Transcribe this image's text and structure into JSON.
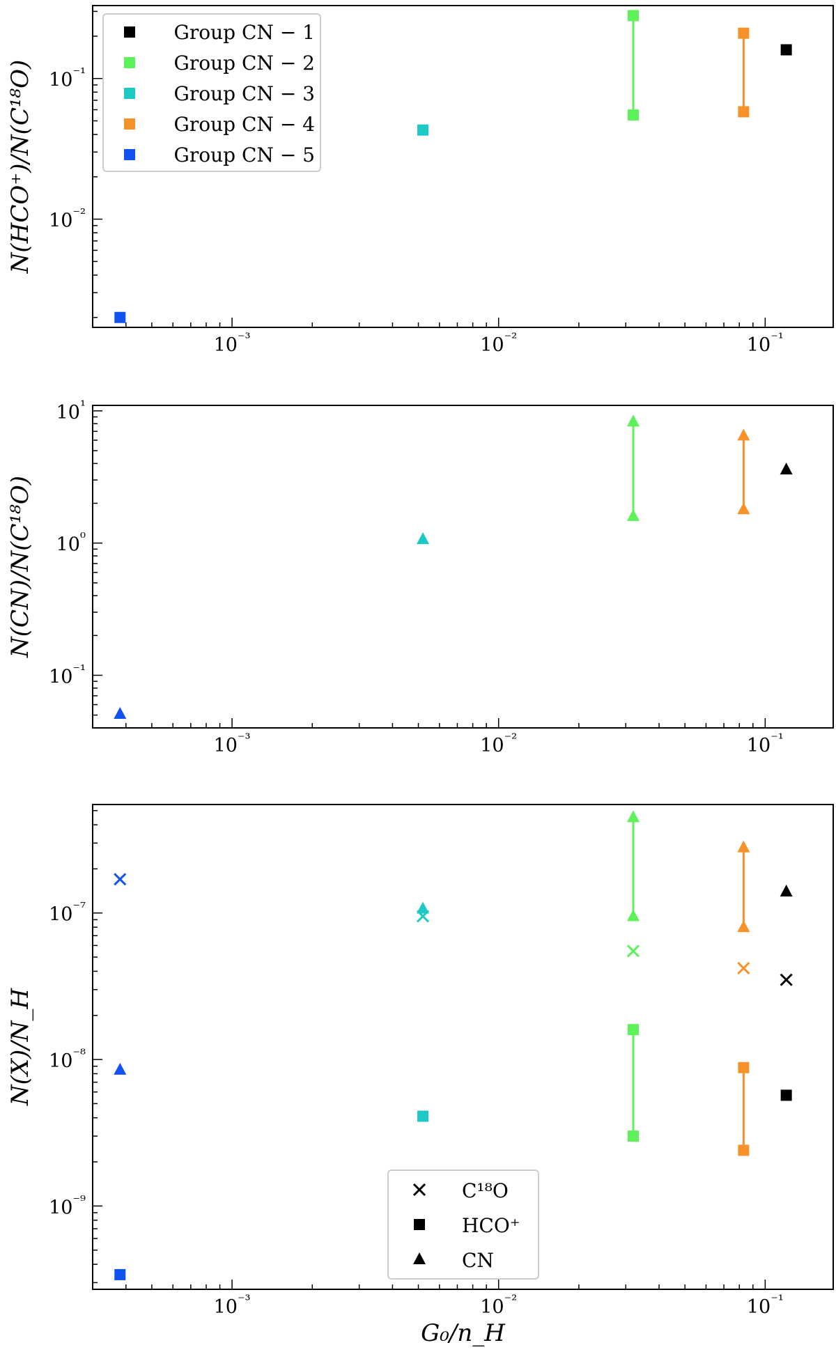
{
  "colors": {
    "group_cn_1": "#000000",
    "group_cn_2": "#5df25a",
    "group_cn_3": "#1ec8c4",
    "group_cn_4": "#f7922a",
    "group_cn_5": "#1152f0"
  },
  "chart_data": [
    {
      "type": "scatter",
      "panel": "top",
      "ylabel": "N(HCO⁺)/N(C¹⁸O)",
      "xlabel": "",
      "xscale": "log",
      "yscale": "log",
      "xlim": [
        0.0003,
        0.18
      ],
      "ylim": [
        0.0017,
        0.33
      ],
      "x_ticks": [
        "10⁻³",
        "10⁻²",
        "10⁻¹"
      ],
      "y_ticks": [
        "10⁻²",
        "10⁻¹"
      ],
      "legend": {
        "placement": "upper-left",
        "entries": [
          "Group CN − 1",
          "Group CN − 2",
          "Group CN − 3",
          "Group CN − 4",
          "Group CN − 5"
        ]
      },
      "series": [
        {
          "name": "Group CN − 1",
          "color_key": "group_cn_1",
          "marker": "square",
          "x": 0.12,
          "y": [
            0.16
          ]
        },
        {
          "name": "Group CN − 2",
          "color_key": "group_cn_2",
          "marker": "square",
          "x": 0.032,
          "y": [
            0.055,
            0.28
          ]
        },
        {
          "name": "Group CN − 3",
          "color_key": "group_cn_3",
          "marker": "square",
          "x": 0.0052,
          "y": [
            0.043
          ]
        },
        {
          "name": "Group CN − 4",
          "color_key": "group_cn_4",
          "marker": "square",
          "x": 0.083,
          "y": [
            0.058,
            0.21
          ]
        },
        {
          "name": "Group CN − 5",
          "color_key": "group_cn_5",
          "marker": "square",
          "x": 0.00038,
          "y": [
            0.002
          ]
        }
      ]
    },
    {
      "type": "scatter",
      "panel": "middle",
      "ylabel": "N(CN)/N(C¹⁸O)",
      "xlabel": "",
      "xscale": "log",
      "yscale": "log",
      "xlim": [
        0.0003,
        0.18
      ],
      "ylim": [
        0.04,
        11
      ],
      "x_ticks": [
        "10⁻³",
        "10⁻²",
        "10⁻¹"
      ],
      "y_ticks": [
        "10⁻¹",
        "10⁰",
        "10¹"
      ],
      "series": [
        {
          "name": "Group CN − 1",
          "color_key": "group_cn_1",
          "marker": "triangle",
          "x": 0.12,
          "y": [
            3.6
          ]
        },
        {
          "name": "Group CN − 2",
          "color_key": "group_cn_2",
          "marker": "triangle",
          "x": 0.032,
          "y": [
            1.6,
            8.3
          ]
        },
        {
          "name": "Group CN − 3",
          "color_key": "group_cn_3",
          "marker": "triangle",
          "x": 0.0052,
          "y": [
            1.07
          ]
        },
        {
          "name": "Group CN − 4",
          "color_key": "group_cn_4",
          "marker": "triangle",
          "x": 0.083,
          "y": [
            1.8,
            6.5
          ]
        },
        {
          "name": "Group CN − 5",
          "color_key": "group_cn_5",
          "marker": "triangle",
          "x": 0.00038,
          "y": [
            0.051
          ]
        }
      ]
    },
    {
      "type": "scatter",
      "panel": "bottom",
      "ylabel": "N(X)/N_H",
      "xlabel": "G₀/n_H",
      "xscale": "log",
      "yscale": "log",
      "xlim": [
        0.0003,
        0.18
      ],
      "ylim": [
        2.7e-10,
        5.5e-07
      ],
      "x_ticks": [
        "10⁻³",
        "10⁻²",
        "10⁻¹"
      ],
      "y_ticks": [
        "10⁻⁹",
        "10⁻⁸",
        "10⁻⁷"
      ],
      "legend": {
        "placement": "lower-center",
        "entries": [
          "C¹⁸O",
          "HCO⁺",
          "CN"
        ]
      },
      "series": [
        {
          "name": "C¹⁸O",
          "marker": "x",
          "points": [
            {
              "group": "group_cn_5",
              "x": 0.00038,
              "y": [
                1.7e-07
              ]
            },
            {
              "group": "group_cn_3",
              "x": 0.0052,
              "y": [
                9.5e-08
              ]
            },
            {
              "group": "group_cn_2",
              "x": 0.032,
              "y": [
                5.5e-08
              ]
            },
            {
              "group": "group_cn_4",
              "x": 0.083,
              "y": [
                4.2e-08
              ]
            },
            {
              "group": "group_cn_1",
              "x": 0.12,
              "y": [
                3.5e-08
              ]
            }
          ]
        },
        {
          "name": "HCO⁺",
          "marker": "square",
          "points": [
            {
              "group": "group_cn_5",
              "x": 0.00038,
              "y": [
                3.4e-10
              ]
            },
            {
              "group": "group_cn_3",
              "x": 0.0052,
              "y": [
                4.1e-09
              ]
            },
            {
              "group": "group_cn_2",
              "x": 0.032,
              "y": [
                3e-09,
                1.6e-08
              ]
            },
            {
              "group": "group_cn_4",
              "x": 0.083,
              "y": [
                2.4e-09,
                8.8e-09
              ]
            },
            {
              "group": "group_cn_1",
              "x": 0.12,
              "y": [
                5.7e-09
              ]
            }
          ]
        },
        {
          "name": "CN",
          "marker": "triangle",
          "points": [
            {
              "group": "group_cn_5",
              "x": 0.00038,
              "y": [
                8.5e-09
              ]
            },
            {
              "group": "group_cn_3",
              "x": 0.0052,
              "y": [
                1.07e-07
              ]
            },
            {
              "group": "group_cn_2",
              "x": 0.032,
              "y": [
                9.5e-08,
                4.5e-07
              ]
            },
            {
              "group": "group_cn_4",
              "x": 0.083,
              "y": [
                8e-08,
                2.8e-07
              ]
            },
            {
              "group": "group_cn_1",
              "x": 0.12,
              "y": [
                1.4e-07
              ]
            }
          ]
        }
      ]
    }
  ]
}
